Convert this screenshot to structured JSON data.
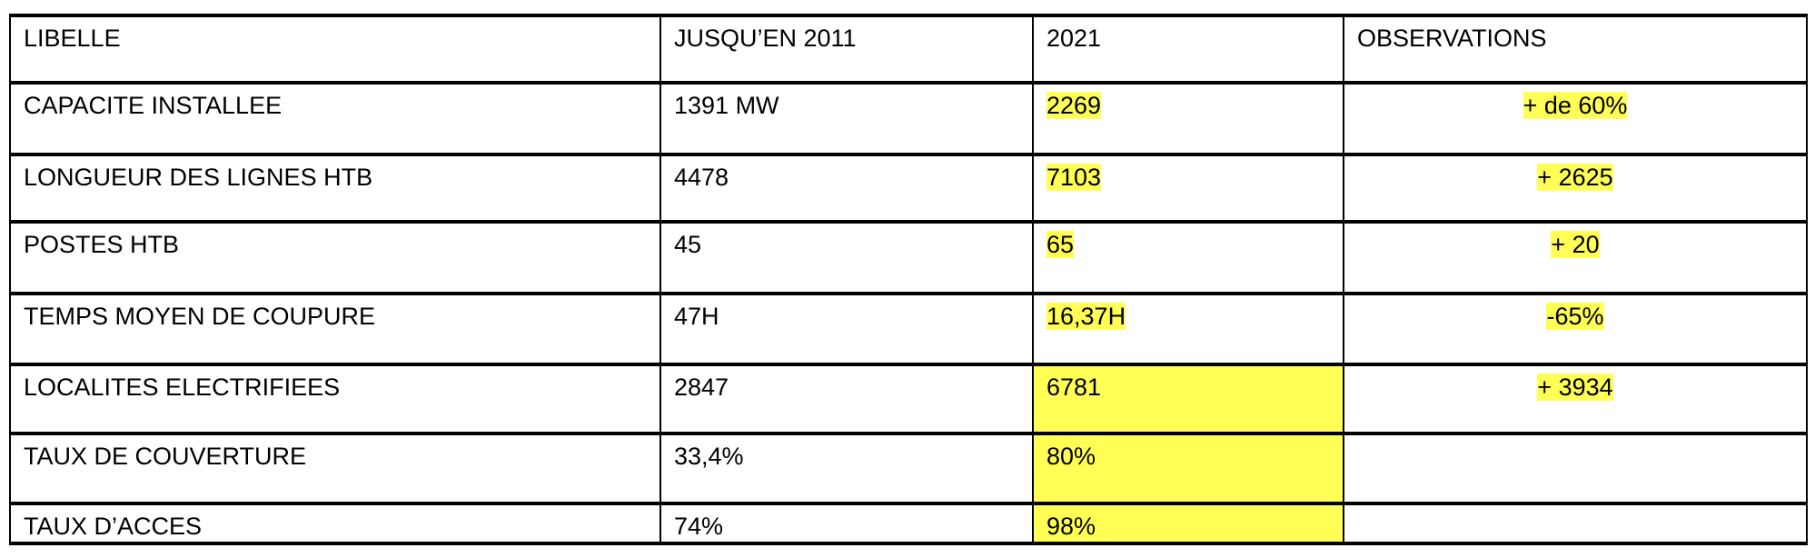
{
  "table": {
    "header": [
      "LIBELLE",
      "JUSQU’EN 2011",
      "2021",
      "OBSERVATIONS"
    ],
    "rows": [
      [
        "CAPACITE INSTALLEE",
        "1391 MW",
        "2269",
        "+ de 60%"
      ],
      [
        "LONGUEUR DES LIGNES HTB",
        "4478",
        "7103",
        "+ 2625"
      ],
      [
        "POSTES HTB",
        "45",
        "65",
        "+ 20"
      ],
      [
        "TEMPS MOYEN DE COUPURE",
        "47H",
        "16,37H",
        "-65%"
      ],
      [
        "LOCALITES ELECTRIFIEES",
        "2847",
        "6781",
        "+ 3934"
      ],
      [
        "TAUX DE COUVERTURE",
        "33,4%",
        "80%"
      ],
      [
        "TAUX D’ACCES",
        "74%",
        "98%"
      ]
    ]
  }
}
